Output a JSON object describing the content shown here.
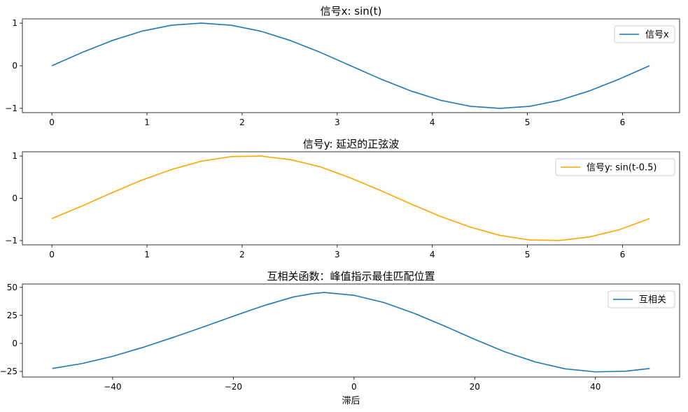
{
  "chart_data": [
    {
      "type": "line",
      "title": "信号x: sin(t)",
      "xlabel": "",
      "ylabel": "",
      "xlim": [
        -0.31,
        6.6
      ],
      "ylim": [
        -1.1,
        1.1
      ],
      "xticks": [
        0,
        1,
        2,
        3,
        4,
        5,
        6
      ],
      "xtick_labels": [
        "0",
        "1",
        "2",
        "3",
        "4",
        "5",
        "6"
      ],
      "yticks": [
        -1,
        0,
        1
      ],
      "ytick_labels": [
        "−1",
        "0",
        "1"
      ],
      "legend_position": "top-right",
      "series": [
        {
          "name": "信号x",
          "color": "#1f77b4",
          "x": [
            0,
            0.3142,
            0.6283,
            0.9425,
            1.2566,
            1.5708,
            1.885,
            2.1991,
            2.5133,
            2.8274,
            3.1416,
            3.4558,
            3.7699,
            4.0841,
            4.3982,
            4.7124,
            5.0265,
            5.3407,
            5.6549,
            5.969,
            6.2832
          ],
          "y": [
            0,
            0.309,
            0.5878,
            0.809,
            0.9511,
            1,
            0.9511,
            0.809,
            0.5878,
            0.309,
            0,
            -0.309,
            -0.5878,
            -0.809,
            -0.9511,
            -1,
            -0.9511,
            -0.809,
            -0.5878,
            -0.309,
            0
          ]
        }
      ]
    },
    {
      "type": "line",
      "title": "信号y: 延迟的正弦波",
      "xlabel": "",
      "ylabel": "",
      "xlim": [
        -0.31,
        6.6
      ],
      "ylim": [
        -1.1,
        1.1
      ],
      "xticks": [
        0,
        1,
        2,
        3,
        4,
        5,
        6
      ],
      "xtick_labels": [
        "0",
        "1",
        "2",
        "3",
        "4",
        "5",
        "6"
      ],
      "yticks": [
        -1,
        0,
        1
      ],
      "ytick_labels": [
        "−1",
        "0",
        "1"
      ],
      "legend_position": "top-right",
      "series": [
        {
          "name": "信号y: sin(t-0.5)",
          "color": "#ffa500",
          "x": [
            0,
            0.3142,
            0.6283,
            0.9425,
            1.2566,
            1.5708,
            1.885,
            2.1991,
            2.5133,
            2.8274,
            3.1416,
            3.4558,
            3.7699,
            4.0841,
            4.3982,
            4.7124,
            5.0265,
            5.3407,
            5.6549,
            5.969,
            6.2832
          ],
          "y": [
            -0.4794,
            -0.1847,
            0.1283,
            0.4272,
            0.6808,
            0.8776,
            0.9865,
            0.9983,
            0.9127,
            0.7412,
            0.4794,
            0.1847,
            -0.1283,
            -0.4272,
            -0.6808,
            -0.8776,
            -0.9865,
            -0.9983,
            -0.9127,
            -0.7412,
            -0.4794
          ]
        }
      ]
    },
    {
      "type": "line",
      "title": "互相关函数：峰值指示最佳匹配位置",
      "xlabel": "滞后",
      "ylabel": "",
      "xlim": [
        -54.95,
        53.95
      ],
      "ylim": [
        -30,
        53
      ],
      "xticks": [
        -40,
        -20,
        0,
        20,
        40
      ],
      "xtick_labels": [
        "−40",
        "−20",
        "0",
        "20",
        "40"
      ],
      "yticks": [
        -25,
        0,
        25,
        50
      ],
      "ytick_labels": [
        "−25",
        "0",
        "25",
        "50"
      ],
      "legend_position": "top-right",
      "series": [
        {
          "name": "互相关",
          "color": "#1f77b4",
          "x": [
            -50,
            -45,
            -40,
            -35,
            -30,
            -25,
            -20,
            -15,
            -10,
            -7,
            -5,
            0,
            5,
            10,
            15,
            20,
            25,
            30,
            35,
            40,
            45,
            49
          ],
          "y": [
            -22.4,
            -17.9,
            -11.5,
            -3.6,
            5.3,
            14.6,
            24.3,
            33.6,
            41.5,
            44.3,
            45.5,
            42.9,
            36.4,
            26.8,
            15.5,
            3.6,
            -7.5,
            -16.5,
            -22.7,
            -25.4,
            -24.8,
            -22.4
          ]
        }
      ]
    }
  ]
}
